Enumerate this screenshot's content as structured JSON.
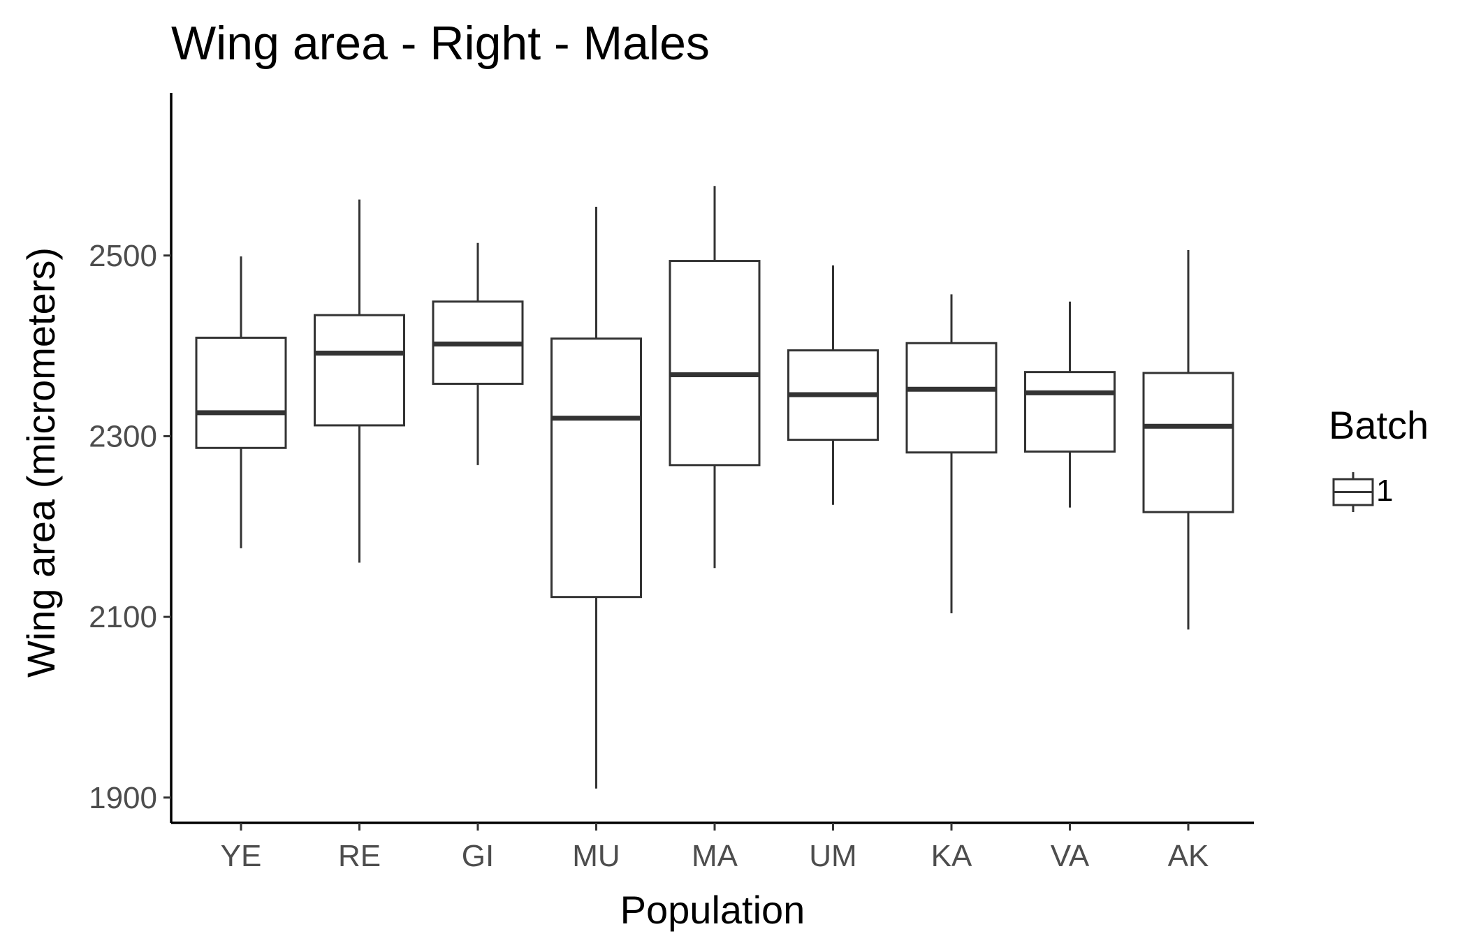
{
  "chart_data": {
    "type": "box",
    "title": "Wing area - Right - Males",
    "xlabel": "Population",
    "ylabel": "Wing area (micrometers)",
    "ylim": [
      1872,
      2680
    ],
    "yticks": [
      1900,
      2100,
      2300,
      2500
    ],
    "grid": false,
    "legend": {
      "title": "Batch",
      "position": "right",
      "entries": [
        "1"
      ]
    },
    "categories": [
      "YE",
      "RE",
      "GI",
      "MU",
      "MA",
      "UM",
      "KA",
      "VA",
      "AK"
    ],
    "series": [
      {
        "name": "1",
        "boxes": [
          {
            "category": "YE",
            "whisker_low": 2176,
            "q1": 2287,
            "median": 2326,
            "q3": 2409,
            "whisker_high": 2499
          },
          {
            "category": "RE",
            "whisker_low": 2160,
            "q1": 2312,
            "median": 2392,
            "q3": 2434,
            "whisker_high": 2562
          },
          {
            "category": "GI",
            "whisker_low": 2268,
            "q1": 2358,
            "median": 2402,
            "q3": 2449,
            "whisker_high": 2514
          },
          {
            "category": "MU",
            "whisker_low": 1910,
            "q1": 2122,
            "median": 2320,
            "q3": 2408,
            "whisker_high": 2554
          },
          {
            "category": "MA",
            "whisker_low": 2154,
            "q1": 2268,
            "median": 2368,
            "q3": 2494,
            "whisker_high": 2577
          },
          {
            "category": "UM",
            "whisker_low": 2224,
            "q1": 2296,
            "median": 2346,
            "q3": 2395,
            "whisker_high": 2489
          },
          {
            "category": "KA",
            "whisker_low": 2104,
            "q1": 2282,
            "median": 2352,
            "q3": 2403,
            "whisker_high": 2457
          },
          {
            "category": "VA",
            "whisker_low": 2221,
            "q1": 2283,
            "median": 2348,
            "q3": 2371,
            "whisker_high": 2449
          },
          {
            "category": "AK",
            "whisker_low": 2086,
            "q1": 2216,
            "median": 2311,
            "q3": 2370,
            "whisker_high": 2506
          }
        ]
      }
    ],
    "colors": {
      "box_stroke": "#333333",
      "box_fill": "#ffffff",
      "axis": "#000000",
      "tick_text": "#4d4d4d"
    }
  }
}
